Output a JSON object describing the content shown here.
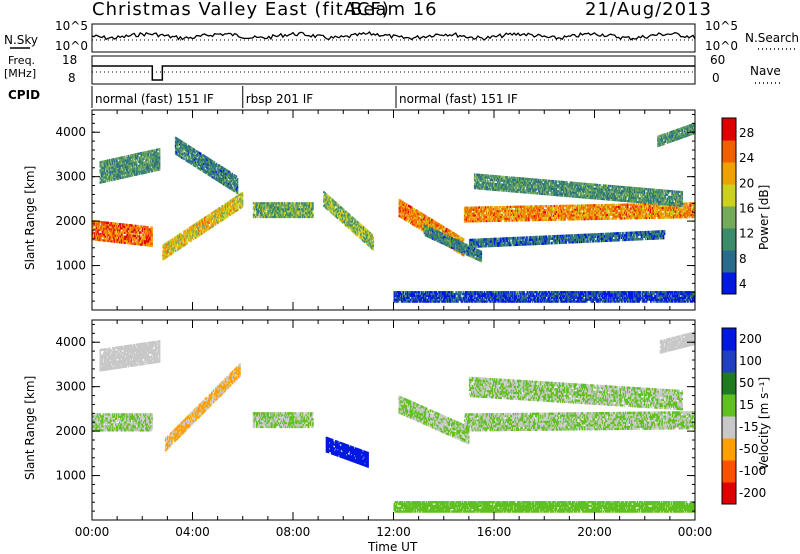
{
  "header": {
    "title": "Christmas Valley East (fitACF)",
    "beam": "Beam 16",
    "date": "21/Aug/2013"
  },
  "strip_labels": {
    "nsky": "N.Sky",
    "nsky_tick_top": "10^5",
    "nsky_tick_bottom": "10^0",
    "nsearch": "N.Search",
    "nsearch_tick_top": "10^5",
    "nsearch_tick_bottom": "10^0",
    "freq_line1": "Freq.",
    "freq_line2": "[MHz]",
    "freq_tick_top": "18",
    "freq_tick_bottom": "8",
    "nave": "Nave",
    "nave_tick_top": "60",
    "nave_tick_bottom": "0",
    "cpid": "CPID"
  },
  "cpid_segments": [
    {
      "start_hour": 0.0,
      "end_hour": 6.0,
      "label": "normal (fast) 151 IF"
    },
    {
      "start_hour": 6.0,
      "end_hour": 12.1,
      "label": "rbsp 201 IF"
    },
    {
      "start_hour": 12.1,
      "end_hour": 24.0,
      "label": "normal (fast) 151 IF"
    }
  ],
  "chart_data": [
    {
      "type": "heatmap",
      "name": "power-panel",
      "ylabel": "Slant Range [km]",
      "xlabel": "",
      "x_range_hours": [
        0,
        24
      ],
      "ylim": [
        0,
        4500
      ],
      "y_ticks": [
        "1000",
        "2000",
        "3000",
        "4000"
      ],
      "colorbar": {
        "label": "Power [dB]",
        "ticks": [
          "28",
          "24",
          "20",
          "16",
          "12",
          "8",
          "4"
        ],
        "range": [
          0,
          30
        ]
      },
      "echo_bands": [
        {
          "start_hour": 0.0,
          "end_hour": 2.4,
          "range_km_start": 1800,
          "range_km_end": 1650,
          "width_km": 450,
          "level": 24
        },
        {
          "start_hour": 0.3,
          "end_hour": 2.7,
          "range_km_start": 3100,
          "range_km_end": 3400,
          "width_km": 500,
          "level": 10
        },
        {
          "start_hour": 2.8,
          "end_hour": 6.0,
          "range_km_start": 1300,
          "range_km_end": 2500,
          "width_km": 350,
          "level": 18
        },
        {
          "start_hour": 3.3,
          "end_hour": 5.8,
          "range_km_start": 3700,
          "range_km_end": 2800,
          "width_km": 400,
          "level": 8
        },
        {
          "start_hour": 6.4,
          "end_hour": 8.8,
          "range_km_start": 2250,
          "range_km_end": 2250,
          "width_km": 350,
          "level": 12
        },
        {
          "start_hour": 9.2,
          "end_hour": 11.2,
          "range_km_start": 2500,
          "range_km_end": 1500,
          "width_km": 350,
          "level": 14
        },
        {
          "start_hour": 12.2,
          "end_hour": 14.8,
          "range_km_start": 2300,
          "range_km_end": 1400,
          "width_km": 400,
          "level": 22
        },
        {
          "start_hour": 13.2,
          "end_hour": 15.5,
          "range_km_start": 1800,
          "range_km_end": 1200,
          "width_km": 250,
          "level": 8
        },
        {
          "start_hour": 14.8,
          "end_hour": 24.0,
          "range_km_start": 2150,
          "range_km_end": 2250,
          "width_km": 350,
          "level": 22
        },
        {
          "start_hour": 15.2,
          "end_hour": 23.5,
          "range_km_start": 2900,
          "range_km_end": 2500,
          "width_km": 350,
          "level": 10
        },
        {
          "start_hour": 15.0,
          "end_hour": 22.8,
          "range_km_start": 1500,
          "range_km_end": 1700,
          "width_km": 200,
          "level": 6
        },
        {
          "start_hour": 22.5,
          "end_hour": 24.0,
          "range_km_start": 3800,
          "range_km_end": 4100,
          "width_km": 250,
          "level": 10
        },
        {
          "start_hour": 12.0,
          "end_hour": 24.0,
          "range_km_start": 300,
          "range_km_end": 300,
          "width_km": 250,
          "level": 3
        }
      ]
    },
    {
      "type": "heatmap",
      "name": "velocity-panel",
      "ylabel": "Slant Range [km]",
      "xlabel": "Time UT",
      "x_range_hours": [
        0,
        24
      ],
      "x_ticks": [
        "00:00",
        "04:00",
        "08:00",
        "12:00",
        "16:00",
        "20:00",
        "00:00"
      ],
      "ylim": [
        0,
        4500
      ],
      "y_ticks": [
        "1000",
        "2000",
        "3000",
        "4000"
      ],
      "colorbar": {
        "label": "Velocity [m s⁻¹]",
        "ticks": [
          "200",
          "100",
          "50",
          "15",
          "-15",
          "-50",
          "-100",
          "-200"
        ],
        "range": [
          -250,
          250
        ]
      },
      "echo_bands": [
        {
          "start_hour": 0.0,
          "end_hour": 2.4,
          "range_km_start": 2200,
          "range_km_end": 2200,
          "width_km": 400,
          "level": 0
        },
        {
          "start_hour": 0.3,
          "end_hour": 2.7,
          "range_km_start": 3600,
          "range_km_end": 3800,
          "width_km": 500,
          "level": -30
        },
        {
          "start_hour": 2.9,
          "end_hour": 5.9,
          "range_km_start": 1700,
          "range_km_end": 3400,
          "width_km": 300,
          "level": -70
        },
        {
          "start_hour": 6.4,
          "end_hour": 8.8,
          "range_km_start": 2250,
          "range_km_end": 2250,
          "width_km": 350,
          "level": 0
        },
        {
          "start_hour": 9.3,
          "end_hour": 11.0,
          "range_km_start": 1700,
          "range_km_end": 1350,
          "width_km": 350,
          "level": 220
        },
        {
          "start_hour": 12.2,
          "end_hour": 15.0,
          "range_km_start": 2600,
          "range_km_end": 1900,
          "width_km": 400,
          "level": 0
        },
        {
          "start_hour": 14.8,
          "end_hour": 24.0,
          "range_km_start": 2200,
          "range_km_end": 2250,
          "width_km": 400,
          "level": 0
        },
        {
          "start_hour": 15.0,
          "end_hour": 23.5,
          "range_km_start": 3000,
          "range_km_end": 2700,
          "width_km": 450,
          "level": 0
        },
        {
          "start_hour": 22.6,
          "end_hour": 24.0,
          "range_km_start": 3900,
          "range_km_end": 4100,
          "width_km": 300,
          "level": -30
        },
        {
          "start_hour": 12.0,
          "end_hour": 24.0,
          "range_km_start": 300,
          "range_km_end": 300,
          "width_km": 250,
          "level": 40
        }
      ]
    }
  ],
  "colors": {
    "power_scale": [
      "#0018e0",
      "#2a6a8a",
      "#3c8c6a",
      "#74aa5a",
      "#ccd020",
      "#f0a000",
      "#f06000",
      "#e00000"
    ],
    "velocity_scale": [
      "#e00000",
      "#ff5000",
      "#ffa000",
      "#c8c8c8",
      "#60c020",
      "#207a20",
      "#2040c0",
      "#0018e0"
    ]
  }
}
